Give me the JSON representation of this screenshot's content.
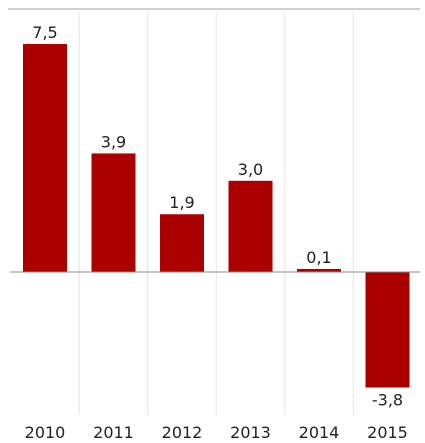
{
  "chart_data": {
    "type": "bar",
    "title": "",
    "xlabel": "",
    "ylabel": "",
    "categories": [
      "2010",
      "2011",
      "2012",
      "2013",
      "2014",
      "2015"
    ],
    "values": [
      7.5,
      3.9,
      1.9,
      3.0,
      0.1,
      -3.8
    ],
    "data_labels": [
      "7,5",
      "3,9",
      "1,9",
      "3,0",
      "0,1",
      "-3,8"
    ],
    "ylim": [
      -4,
      8
    ],
    "grid": "vertical",
    "legend": "none",
    "colors": {
      "bar": "#aa0000",
      "baseline": "#888888",
      "gridline": "#e6e6e6",
      "topline": "#cfcfcf"
    }
  }
}
